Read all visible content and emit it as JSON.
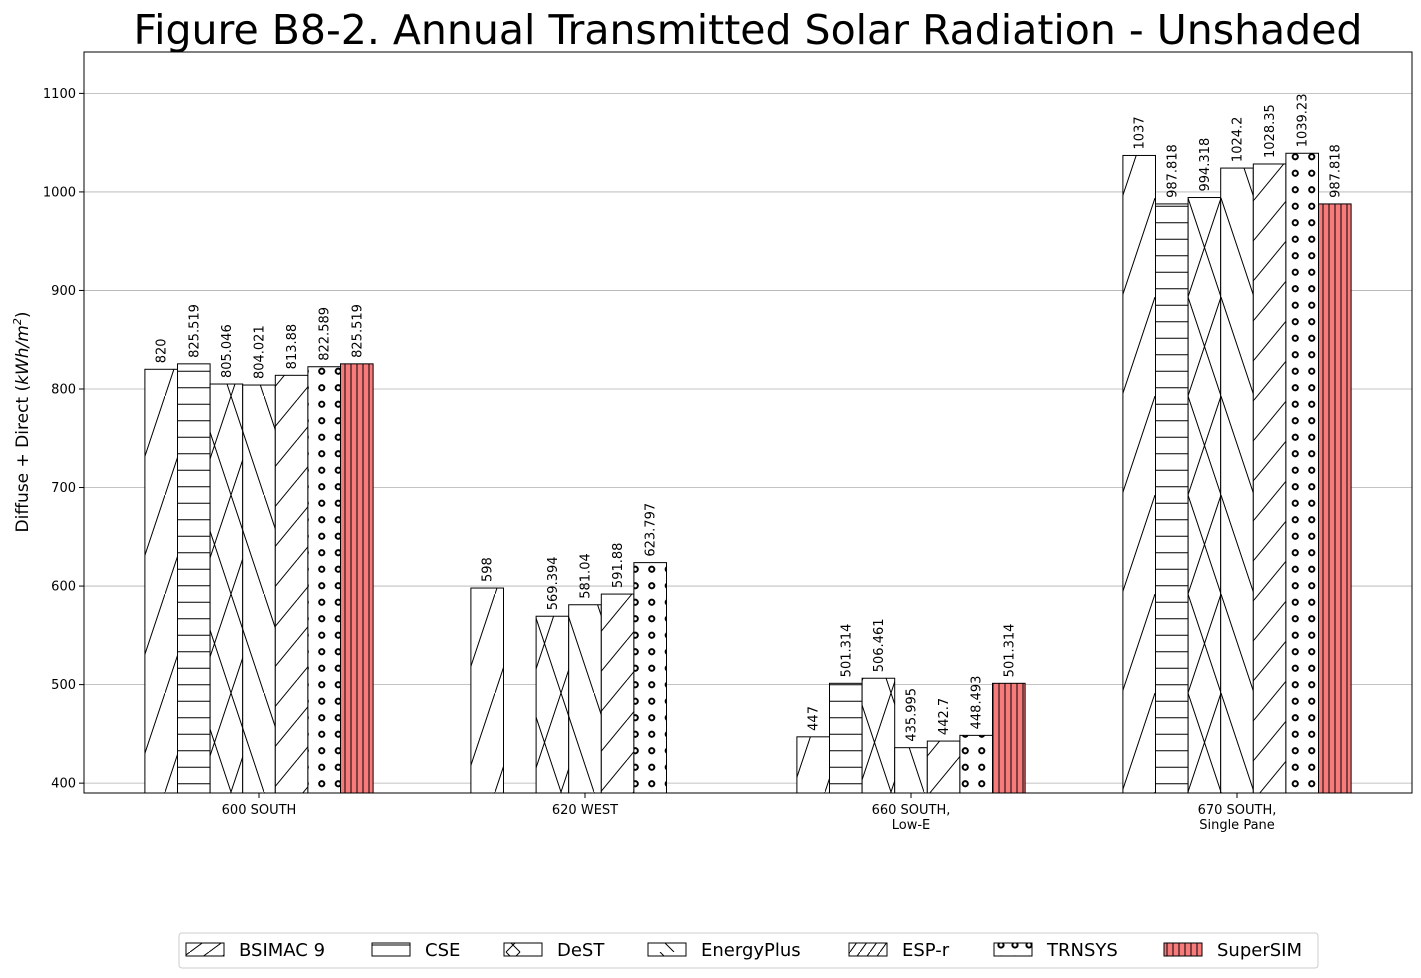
{
  "chart_data": {
    "type": "bar",
    "title": "Figure B8-2.  Annual Transmitted Solar Radiation - Unshaded",
    "ylabel_prefix": "Diffuse + Direct (",
    "ylabel_units": "kWh/m",
    "ylabel_power": "2",
    "ylabel_suffix": ")",
    "ylim": [
      390,
      1142
    ],
    "yticks": [
      400,
      500,
      600,
      700,
      800,
      900,
      1000,
      1100
    ],
    "grid": "y",
    "legend_position": "bottom",
    "categories": [
      [
        "600 SOUTH"
      ],
      [
        "620 WEST"
      ],
      [
        "660 SOUTH,",
        "Low-E"
      ],
      [
        "670 SOUTH,",
        "Single Pane"
      ]
    ],
    "series": [
      {
        "name": "BSIMAC 9",
        "hatch": "fwdslash-wide",
        "color": "#ffffff",
        "values": [
          820,
          598,
          447,
          1037
        ],
        "labels": [
          "820",
          "598",
          "447",
          "1037"
        ]
      },
      {
        "name": "CSE",
        "hatch": "horizontal",
        "color": "#ffffff",
        "values": [
          825.519,
          null,
          501.314,
          987.818
        ],
        "labels": [
          "825.519",
          "",
          "501.314",
          "987.818"
        ]
      },
      {
        "name": "DeST",
        "hatch": "cross",
        "color": "#ffffff",
        "values": [
          805.046,
          569.394,
          506.461,
          994.318
        ],
        "labels": [
          "805.046",
          "569.394",
          "506.461",
          "994.318"
        ]
      },
      {
        "name": "EnergyPlus",
        "hatch": "backslash",
        "color": "#ffffff",
        "values": [
          804.021,
          581.04,
          435.995,
          1024.2
        ],
        "labels": [
          "804.021",
          "581.04",
          "435.995",
          "1024.2"
        ]
      },
      {
        "name": "ESP-r",
        "hatch": "fwdslash-dense",
        "color": "#ffffff",
        "values": [
          813.88,
          591.88,
          442.7,
          1028.35
        ],
        "labels": [
          "813.88",
          "591.88",
          "442.7",
          "1028.35"
        ]
      },
      {
        "name": "TRNSYS",
        "hatch": "circles",
        "color": "#ffffff",
        "values": [
          822.589,
          623.797,
          448.493,
          1039.23
        ],
        "labels": [
          "822.589",
          "623.797",
          "448.493",
          "1039.23"
        ]
      },
      {
        "name": "SuperSIM",
        "hatch": "vertical",
        "color": "#f77b7b",
        "values": [
          825.519,
          null,
          501.314,
          987.818
        ],
        "labels": [
          "825.519",
          "",
          "501.314",
          "987.818"
        ]
      }
    ]
  }
}
